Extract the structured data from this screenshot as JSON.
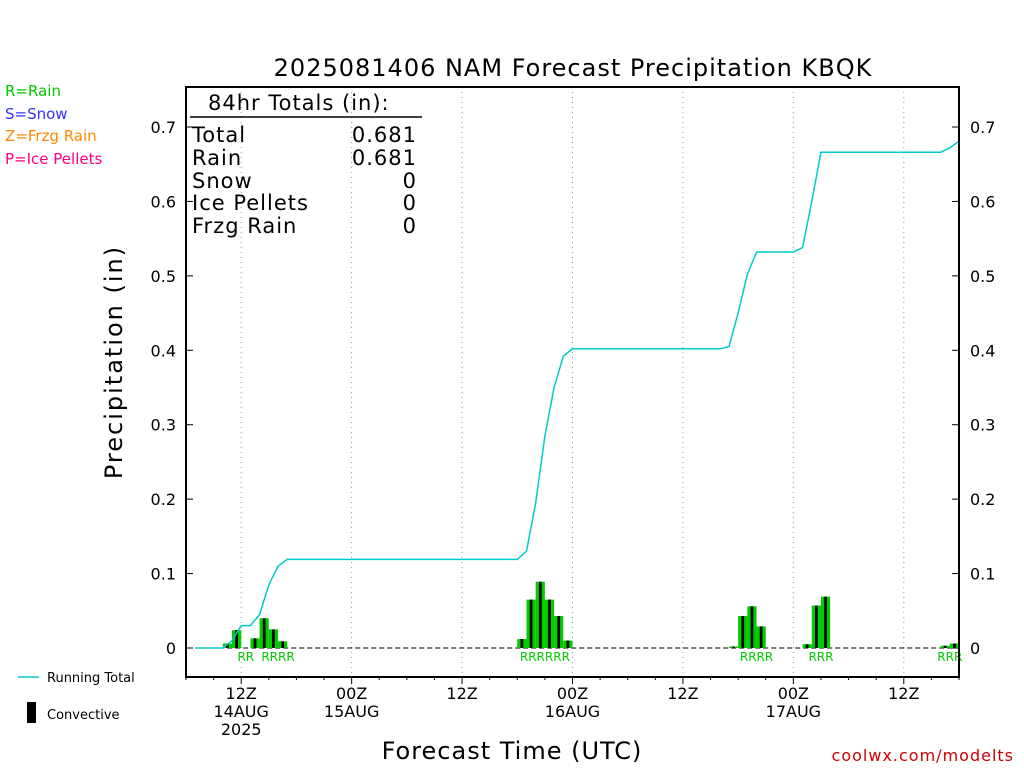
{
  "header": {
    "title": "2025081406 NAM Forecast Precipitation KBQK"
  },
  "ptype_legend": [
    {
      "label": "R=Rain",
      "color": "#00cc00"
    },
    {
      "label": "S=Snow",
      "color": "#3333ff"
    },
    {
      "label": "Z=Frzg Rain",
      "color": "#ff8800"
    },
    {
      "label": "P=Ice Pellets",
      "color": "#ff0080"
    }
  ],
  "series_legend": {
    "line": "Running Total",
    "bar": "Convective"
  },
  "totals": {
    "heading": "84hr Totals (in):",
    "rows": [
      {
        "label": "Total",
        "value": "0.681"
      },
      {
        "label": "Rain",
        "value": "0.681"
      },
      {
        "label": "Snow",
        "value": "0"
      },
      {
        "label": "Ice Pellets",
        "value": "0"
      },
      {
        "label": "Frzg Rain",
        "value": "0"
      }
    ]
  },
  "credit": "coolwx.com/modelts",
  "chart_data": {
    "type": "bar",
    "title": "2025081406 NAM Forecast Precipitation KBQK",
    "xlabel": "Forecast Time (UTC)",
    "ylabel": "Precipitation (in)",
    "x_unit": "forecast hour",
    "xlim": [
      0,
      84
    ],
    "ylim": [
      -0.04,
      0.74
    ],
    "yticks": [
      0,
      0.1,
      0.2,
      0.3,
      0.4,
      0.5,
      0.6,
      0.7
    ],
    "ytick_labels": [
      "0",
      "0.1",
      "0.2",
      "0.3",
      "0.4",
      "0.5",
      "0.6",
      "0.7"
    ],
    "xticks": [
      {
        "hour": 6,
        "lines": [
          "12Z",
          "14AUG",
          "2025"
        ]
      },
      {
        "hour": 18,
        "lines": [
          "00Z",
          "15AUG"
        ]
      },
      {
        "hour": 30,
        "lines": [
          "12Z"
        ]
      },
      {
        "hour": 42,
        "lines": [
          "00Z",
          "16AUG"
        ]
      },
      {
        "hour": 54,
        "lines": [
          "12Z"
        ]
      },
      {
        "hour": 66,
        "lines": [
          "00Z",
          "17AUG"
        ]
      },
      {
        "hour": 78,
        "lines": [
          "12Z"
        ]
      }
    ],
    "grid": "vertical dotted",
    "colors": {
      "rain": "#00cc00",
      "convective": "#000000",
      "line": "#00cccc"
    },
    "series": [
      {
        "name": "Running Total",
        "type": "line",
        "x": [
          1,
          4,
          5,
          6,
          7,
          8,
          9,
          10,
          11,
          12,
          36,
          37,
          38,
          38.5,
          39,
          40,
          41,
          42,
          43,
          58,
          59,
          60,
          61,
          62,
          63,
          65,
          66,
          67,
          68,
          69,
          82,
          83,
          84
        ],
        "y": [
          0,
          0,
          0.01,
          0.03,
          0.03,
          0.045,
          0.085,
          0.11,
          0.119,
          0.119,
          0.119,
          0.13,
          0.195,
          0.24,
          0.285,
          0.35,
          0.392,
          0.402,
          0.402,
          0.402,
          0.405,
          0.45,
          0.502,
          0.532,
          0.532,
          0.532,
          0.532,
          0.538,
          0.6,
          0.666,
          0.666,
          0.672,
          0.681
        ]
      },
      {
        "name": "Convective",
        "type": "bar",
        "x": [
          5,
          6,
          8,
          9,
          10,
          11,
          37,
          38,
          39,
          40,
          41,
          42,
          60,
          61,
          62,
          63,
          68,
          69,
          70,
          83,
          84
        ],
        "y": [
          0.006,
          0.024,
          0.013,
          0.04,
          0.025,
          0.009,
          0.012,
          0.065,
          0.089,
          0.065,
          0.043,
          0.01,
          0.002,
          0.043,
          0.056,
          0.029,
          0.005,
          0.057,
          0.069,
          0.003,
          0.006
        ]
      }
    ],
    "ptype_labels": [
      {
        "x": 6.5,
        "text": "RR"
      },
      {
        "x": 10,
        "text": "RRRR"
      },
      {
        "x": 39,
        "text": "RRRRRR"
      },
      {
        "x": 62,
        "text": "RRRR"
      },
      {
        "x": 69,
        "text": "RRR"
      },
      {
        "x": 83,
        "text": "RRR"
      }
    ]
  }
}
